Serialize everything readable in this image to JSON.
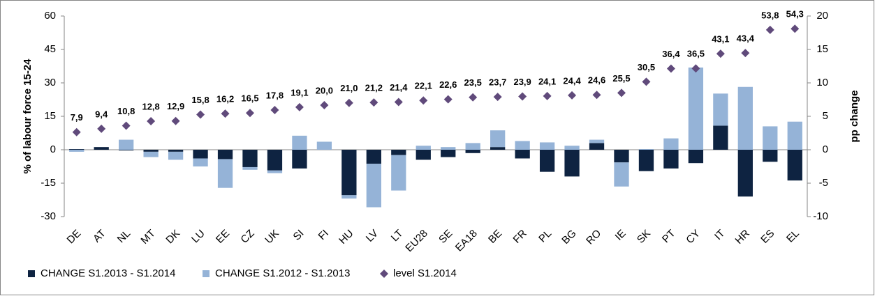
{
  "chart_data": {
    "type": "bar",
    "stacked": true,
    "categories": [
      "DE",
      "AT",
      "NL",
      "MT",
      "DK",
      "LU",
      "EE",
      "CZ",
      "UK",
      "SI",
      "FI",
      "HU",
      "LV",
      "LT",
      "EU28",
      "SE",
      "EA18",
      "BE",
      "FR",
      "PL",
      "BG",
      "RO",
      "IE",
      "SK",
      "PT",
      "CY",
      "IT",
      "HR",
      "ES",
      "EL"
    ],
    "ylabel": "% of labour force 15-24",
    "y2label": "pp change",
    "ylim": [
      -30,
      60
    ],
    "yticks": [
      -30,
      -15,
      0,
      15,
      30,
      45,
      60
    ],
    "y2lim": [
      -10,
      20
    ],
    "y2ticks": [
      -10,
      -5,
      0,
      5,
      10,
      15,
      20
    ],
    "legend": "bottom",
    "series": [
      {
        "name": "CHANGE S1.2013 - S1.2014",
        "type": "bar",
        "axis": "y2",
        "color": "#0e2341",
        "values": [
          0.1,
          0.4,
          -0.1,
          -0.3,
          -0.3,
          -1.3,
          -1.4,
          -2.6,
          -3.1,
          -2.8,
          0,
          -6.8,
          -2.1,
          -0.8,
          -1.5,
          -1.1,
          -0.5,
          0.4,
          -1.3,
          -3.3,
          -4.0,
          1.0,
          -1.9,
          -3.2,
          -2.8,
          -2.0,
          3.6,
          -7.0,
          -1.8,
          -4.6
        ]
      },
      {
        "name": "CHANGE S1.2012 - S1.2013",
        "type": "bar",
        "axis": "y2",
        "color": "#95b3d7",
        "values": [
          -0.3,
          0,
          1.5,
          -0.8,
          -1.2,
          -1.2,
          -4.3,
          -0.4,
          -0.4,
          2.1,
          1.2,
          -0.5,
          -6.5,
          -5.3,
          0.6,
          0.4,
          1.0,
          2.5,
          1.3,
          1.1,
          0.6,
          0.5,
          -3.6,
          0.1,
          1.7,
          12.3,
          4.8,
          9.4,
          3.5,
          4.2
        ]
      },
      {
        "name": "level S1.2014",
        "type": "scatter",
        "marker": "diamond",
        "color": "#604a7b",
        "values": [
          7.9,
          9.4,
          10.8,
          12.8,
          12.9,
          15.8,
          16.2,
          16.5,
          17.8,
          19.1,
          20.0,
          21.0,
          21.2,
          21.4,
          22.1,
          22.6,
          23.5,
          23.7,
          23.9,
          24.1,
          24.4,
          24.6,
          25.5,
          30.5,
          36.4,
          36.5,
          43.1,
          43.4,
          53.8,
          54.3
        ],
        "value_labels": [
          "7,9",
          "9,4",
          "10,8",
          "12,8",
          "12,9",
          "15,8",
          "16,2",
          "16,5",
          "17,8",
          "19,1",
          "20,0",
          "21,0",
          "21,2",
          "21,4",
          "22,1",
          "22,6",
          "23,5",
          "23,7",
          "23,9",
          "24,1",
          "24,4",
          "24,6",
          "25,5",
          "30,5",
          "36,4",
          "36,5",
          "43,1",
          "43,4",
          "53,8",
          "54,3"
        ]
      }
    ]
  }
}
